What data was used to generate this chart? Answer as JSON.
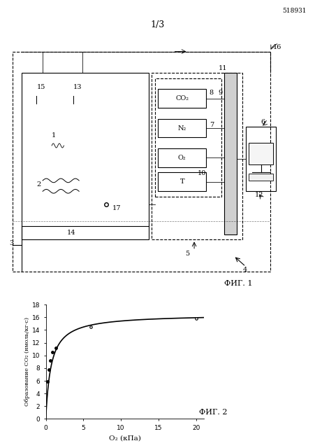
{
  "page_num": "518931",
  "fig_label_top": "1/3",
  "fig1_label": "ФИГ. 1",
  "fig2_label": "ФИГ. 2",
  "graph_xlabel": "O₂ (кПа)",
  "graph_ylabel": "Образование CO₂ (нмоль/кг·с)",
  "graph_xlim": [
    0,
    21
  ],
  "graph_ylim": [
    0,
    18
  ],
  "graph_xticks": [
    0,
    5,
    10,
    15,
    20
  ],
  "graph_yticks": [
    0,
    2,
    4,
    6,
    8,
    10,
    12,
    14,
    16,
    18
  ],
  "data_points_x": [
    0.25,
    0.4,
    0.6,
    0.9,
    1.3,
    6.0,
    20.0
  ],
  "data_points_y": [
    5.9,
    7.8,
    9.2,
    10.5,
    11.2,
    14.5,
    15.8
  ],
  "curve_color": "#000000",
  "point_color": "#000000",
  "bg_color": "#ffffff",
  "text_color": "#000000",
  "Vmax": 16.5,
  "Km": 0.7
}
